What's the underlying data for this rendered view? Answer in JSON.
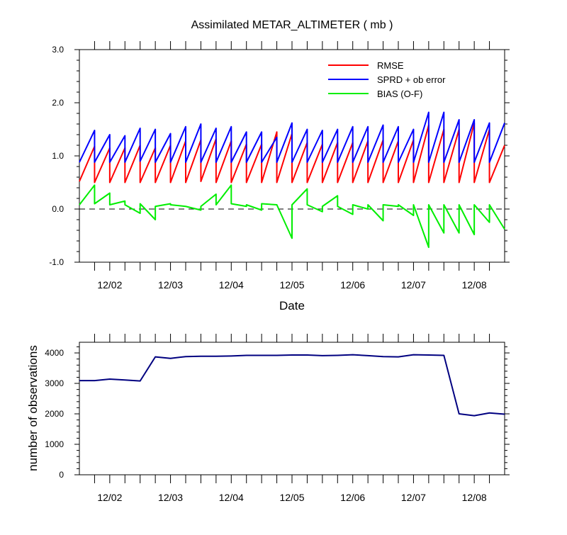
{
  "chart_data": [
    {
      "type": "line",
      "title": "Assimilated METAR_ALTIMETER ( mb )",
      "xlabel": "Date",
      "ylabel": "",
      "ylim": [
        -1.0,
        3.0
      ],
      "yticks": [
        "3.0",
        "2.0",
        "1.0",
        "0.0",
        "-1.0"
      ],
      "ytick_values": [
        3.0,
        2.0,
        1.0,
        0.0,
        -1.0
      ],
      "x_range": [
        1.5,
        8.5
      ],
      "x_ticks": [
        {
          "label": "12/02",
          "value": 2
        },
        {
          "label": "12/03",
          "value": 3
        },
        {
          "label": "12/04",
          "value": 4
        },
        {
          "label": "12/05",
          "value": 5
        },
        {
          "label": "12/06",
          "value": 6
        },
        {
          "label": "12/07",
          "value": 7
        },
        {
          "label": "12/08",
          "value": 8
        }
      ],
      "legend_position": "top-right",
      "zero_line": "dashed",
      "series": [
        {
          "name": "RMSE",
          "color": "#ff0000",
          "x": [
            1.5,
            1.75,
            1.75,
            2.0,
            2.0,
            2.25,
            2.25,
            2.5,
            2.5,
            2.75,
            2.75,
            3.0,
            3.0,
            3.25,
            3.25,
            3.5,
            3.5,
            3.75,
            3.75,
            4.0,
            4.0,
            4.25,
            4.25,
            4.5,
            4.5,
            4.75,
            4.75,
            5.0,
            5.0,
            5.25,
            5.25,
            5.5,
            5.5,
            5.75,
            5.75,
            6.0,
            6.0,
            6.25,
            6.25,
            6.5,
            6.5,
            6.75,
            6.75,
            7.0,
            7.0,
            7.25,
            7.25,
            7.5,
            7.5,
            7.75,
            7.75,
            8.0,
            8.0,
            8.25,
            8.25,
            8.5
          ],
          "y": [
            0.52,
            1.18,
            0.5,
            1.15,
            0.5,
            1.15,
            0.5,
            1.2,
            0.5,
            1.15,
            0.5,
            1.2,
            0.5,
            1.28,
            0.5,
            1.3,
            0.52,
            1.32,
            0.5,
            1.28,
            0.5,
            1.22,
            0.5,
            1.22,
            0.5,
            1.45,
            0.5,
            1.42,
            0.5,
            1.25,
            0.5,
            1.22,
            0.5,
            1.25,
            0.5,
            1.25,
            0.5,
            1.28,
            0.5,
            1.3,
            0.5,
            1.28,
            0.5,
            1.3,
            0.5,
            1.58,
            0.5,
            1.5,
            0.5,
            1.5,
            0.5,
            1.62,
            0.5,
            1.5,
            0.5,
            1.2
          ]
        },
        {
          "name": "SPRD + ob error",
          "color": "#0000ff",
          "x": [
            1.5,
            1.75,
            1.75,
            2.0,
            2.0,
            2.25,
            2.25,
            2.5,
            2.5,
            2.75,
            2.75,
            3.0,
            3.0,
            3.25,
            3.25,
            3.5,
            3.5,
            3.75,
            3.75,
            4.0,
            4.0,
            4.25,
            4.25,
            4.5,
            4.5,
            4.75,
            4.75,
            5.0,
            5.0,
            5.25,
            5.25,
            5.5,
            5.5,
            5.75,
            5.75,
            6.0,
            6.0,
            6.25,
            6.25,
            6.5,
            6.5,
            6.75,
            6.75,
            7.0,
            7.0,
            7.25,
            7.25,
            7.5,
            7.5,
            7.75,
            7.75,
            8.0,
            8.0,
            8.25,
            8.25,
            8.5
          ],
          "y": [
            0.88,
            1.48,
            0.88,
            1.4,
            0.88,
            1.38,
            0.88,
            1.52,
            0.9,
            1.5,
            0.88,
            1.42,
            0.88,
            1.55,
            0.88,
            1.6,
            0.88,
            1.52,
            0.88,
            1.55,
            0.88,
            1.45,
            0.88,
            1.45,
            0.88,
            1.35,
            0.88,
            1.62,
            0.88,
            1.5,
            0.88,
            1.48,
            0.88,
            1.5,
            0.88,
            1.55,
            0.88,
            1.55,
            0.88,
            1.58,
            0.88,
            1.55,
            0.88,
            1.5,
            0.88,
            1.82,
            0.88,
            1.82,
            0.88,
            1.68,
            0.88,
            1.68,
            0.88,
            1.62,
            0.88,
            1.62
          ]
        },
        {
          "name": "BIAS (O-F)",
          "color": "#00ee00",
          "x": [
            1.5,
            1.75,
            1.75,
            2.0,
            2.0,
            2.25,
            2.25,
            2.5,
            2.5,
            2.75,
            2.75,
            3.0,
            3.0,
            3.25,
            3.25,
            3.5,
            3.5,
            3.75,
            3.75,
            4.0,
            4.0,
            4.25,
            4.25,
            4.5,
            4.5,
            4.75,
            4.75,
            5.0,
            5.0,
            5.25,
            5.25,
            5.5,
            5.5,
            5.75,
            5.75,
            6.0,
            6.0,
            6.25,
            6.25,
            6.5,
            6.5,
            6.75,
            6.75,
            7.0,
            7.0,
            7.25,
            7.25,
            7.5,
            7.5,
            7.75,
            7.75,
            8.0,
            8.0,
            8.25,
            8.25,
            8.5
          ],
          "y": [
            0.08,
            0.45,
            0.1,
            0.3,
            0.08,
            0.15,
            0.08,
            -0.08,
            0.1,
            -0.2,
            0.05,
            0.1,
            0.08,
            0.05,
            0.05,
            -0.02,
            0.05,
            0.28,
            0.08,
            0.45,
            0.1,
            0.05,
            0.08,
            -0.02,
            0.1,
            0.08,
            0.08,
            -0.55,
            0.08,
            0.38,
            0.08,
            -0.05,
            0.05,
            0.25,
            0.05,
            -0.1,
            0.08,
            0.0,
            0.08,
            -0.22,
            0.08,
            0.05,
            0.08,
            -0.12,
            0.08,
            -0.72,
            0.08,
            -0.45,
            0.08,
            -0.45,
            0.08,
            -0.48,
            0.08,
            -0.25,
            0.08,
            -0.38
          ]
        }
      ]
    },
    {
      "type": "line",
      "title": "",
      "xlabel": "",
      "ylabel": "number of observations",
      "ylim": [
        0,
        4350
      ],
      "yticks": [
        "4000",
        "3000",
        "2000",
        "1000",
        "0"
      ],
      "ytick_values": [
        4000,
        3000,
        2000,
        1000,
        0
      ],
      "x_range": [
        1.5,
        8.5
      ],
      "x_ticks": [
        {
          "label": "12/02",
          "value": 2
        },
        {
          "label": "12/03",
          "value": 3
        },
        {
          "label": "12/04",
          "value": 4
        },
        {
          "label": "12/05",
          "value": 5
        },
        {
          "label": "12/06",
          "value": 6
        },
        {
          "label": "12/07",
          "value": 7
        },
        {
          "label": "12/08",
          "value": 8
        }
      ],
      "series": [
        {
          "color": "#000080",
          "x": [
            1.5,
            1.75,
            2.0,
            2.25,
            2.5,
            2.75,
            3.0,
            3.25,
            3.5,
            3.75,
            4.0,
            4.25,
            4.5,
            4.75,
            5.0,
            5.25,
            5.5,
            5.75,
            6.0,
            6.25,
            6.5,
            6.75,
            7.0,
            7.25,
            7.5,
            7.75,
            8.0,
            8.25,
            8.5
          ],
          "y": [
            3090,
            3090,
            3140,
            3110,
            3080,
            3870,
            3820,
            3880,
            3890,
            3890,
            3900,
            3920,
            3920,
            3920,
            3930,
            3930,
            3910,
            3920,
            3940,
            3910,
            3880,
            3870,
            3940,
            3930,
            3920,
            2000,
            1940,
            2030,
            1990
          ]
        }
      ]
    }
  ]
}
